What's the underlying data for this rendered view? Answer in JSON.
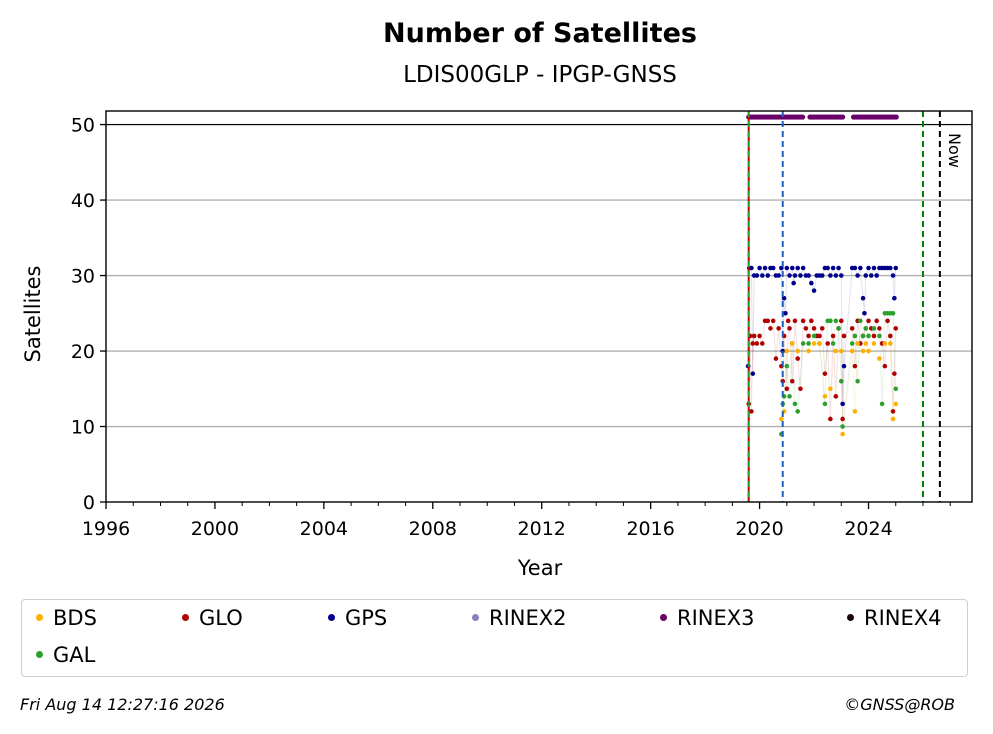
{
  "chart_data": {
    "type": "scatter",
    "title": "Number of Satellites",
    "subtitle": "LDIS00GLP - IPGP-GNSS",
    "xlabel": "Year",
    "ylabel": "Satellites",
    "xlim": [
      1996.0,
      2027.8
    ],
    "ylim": [
      0,
      51.8
    ],
    "x_ticks": [
      1996,
      2000,
      2004,
      2008,
      2012,
      2016,
      2020,
      2024
    ],
    "y_ticks": [
      0,
      10,
      20,
      30,
      40,
      50
    ],
    "grid": "y",
    "reference_line_y": 50,
    "vlines": [
      {
        "x": 2019.6,
        "color": "#cc0000",
        "style": "solid"
      },
      {
        "x": 2019.6,
        "color": "#2ca02c",
        "style": "dashed"
      },
      {
        "x": 2020.85,
        "color": "#1f5fbf",
        "style": "dashed"
      },
      {
        "x": 2026.0,
        "color": "#008000",
        "style": "dashed"
      },
      {
        "x": 2026.62,
        "color": "#000000",
        "style": "dashed",
        "label": "Now"
      }
    ],
    "rinex_bands": [
      {
        "name": "RINEX3",
        "y": 51,
        "color": "#6a006a",
        "ranges": [
          [
            2019.6,
            2021.6
          ],
          [
            2021.85,
            2023.1
          ],
          [
            2023.45,
            2024.55
          ],
          [
            2024.6,
            2025.05
          ]
        ]
      }
    ],
    "series": [
      {
        "name": "GPS",
        "color": "#00008b",
        "points": [
          [
            2019.58,
            18
          ],
          [
            2019.62,
            31
          ],
          [
            2019.7,
            31
          ],
          [
            2019.75,
            17
          ],
          [
            2019.8,
            30
          ],
          [
            2019.9,
            30
          ],
          [
            2020.0,
            31
          ],
          [
            2020.1,
            30
          ],
          [
            2020.2,
            31
          ],
          [
            2020.3,
            30
          ],
          [
            2020.4,
            31
          ],
          [
            2020.5,
            31
          ],
          [
            2020.6,
            30
          ],
          [
            2020.7,
            30
          ],
          [
            2020.8,
            31
          ],
          [
            2020.85,
            20
          ],
          [
            2020.9,
            27
          ],
          [
            2020.95,
            25
          ],
          [
            2021.0,
            31
          ],
          [
            2021.1,
            30
          ],
          [
            2021.2,
            31
          ],
          [
            2021.25,
            29
          ],
          [
            2021.3,
            30
          ],
          [
            2021.4,
            31
          ],
          [
            2021.5,
            30
          ],
          [
            2021.6,
            31
          ],
          [
            2021.7,
            30
          ],
          [
            2021.8,
            30
          ],
          [
            2021.9,
            29
          ],
          [
            2022.0,
            28
          ],
          [
            2022.1,
            30
          ],
          [
            2022.2,
            30
          ],
          [
            2022.3,
            30
          ],
          [
            2022.4,
            31
          ],
          [
            2022.5,
            31
          ],
          [
            2022.6,
            30
          ],
          [
            2022.7,
            31
          ],
          [
            2022.8,
            30
          ],
          [
            2022.9,
            31
          ],
          [
            2023.0,
            30
          ],
          [
            2023.05,
            13
          ],
          [
            2023.1,
            18
          ],
          [
            2023.4,
            31
          ],
          [
            2023.5,
            31
          ],
          [
            2023.6,
            30
          ],
          [
            2023.7,
            31
          ],
          [
            2023.8,
            27
          ],
          [
            2023.85,
            25
          ],
          [
            2023.9,
            30
          ],
          [
            2024.0,
            31
          ],
          [
            2024.1,
            30
          ],
          [
            2024.2,
            31
          ],
          [
            2024.3,
            30
          ],
          [
            2024.4,
            31
          ],
          [
            2024.5,
            31
          ],
          [
            2024.6,
            31
          ],
          [
            2024.7,
            31
          ],
          [
            2024.8,
            31
          ],
          [
            2024.9,
            30
          ],
          [
            2024.95,
            27
          ],
          [
            2025.0,
            31
          ]
        ]
      },
      {
        "name": "GLO",
        "color": "#b00000",
        "points": [
          [
            2019.6,
            13
          ],
          [
            2019.65,
            22
          ],
          [
            2019.7,
            12
          ],
          [
            2019.75,
            21
          ],
          [
            2019.8,
            22
          ],
          [
            2019.9,
            21
          ],
          [
            2020.0,
            22
          ],
          [
            2020.1,
            21
          ],
          [
            2020.2,
            24
          ],
          [
            2020.3,
            24
          ],
          [
            2020.4,
            23
          ],
          [
            2020.5,
            24
          ],
          [
            2020.6,
            19
          ],
          [
            2020.7,
            23
          ],
          [
            2020.8,
            18
          ],
          [
            2020.85,
            16
          ],
          [
            2020.9,
            22
          ],
          [
            2021.0,
            15
          ],
          [
            2021.05,
            24
          ],
          [
            2021.1,
            23
          ],
          [
            2021.2,
            16
          ],
          [
            2021.3,
            24
          ],
          [
            2021.4,
            19
          ],
          [
            2021.5,
            15
          ],
          [
            2021.6,
            24
          ],
          [
            2021.7,
            23
          ],
          [
            2021.8,
            22
          ],
          [
            2021.9,
            24
          ],
          [
            2022.0,
            23
          ],
          [
            2022.1,
            22
          ],
          [
            2022.2,
            22
          ],
          [
            2022.3,
            23
          ],
          [
            2022.4,
            17
          ],
          [
            2022.5,
            21
          ],
          [
            2022.6,
            11
          ],
          [
            2022.7,
            22
          ],
          [
            2022.8,
            14
          ],
          [
            2022.9,
            23
          ],
          [
            2023.0,
            24
          ],
          [
            2023.05,
            11
          ],
          [
            2023.1,
            22
          ],
          [
            2023.4,
            23
          ],
          [
            2023.5,
            18
          ],
          [
            2023.6,
            24
          ],
          [
            2023.7,
            21
          ],
          [
            2023.8,
            22
          ],
          [
            2023.9,
            23
          ],
          [
            2024.0,
            24
          ],
          [
            2024.1,
            23
          ],
          [
            2024.2,
            22
          ],
          [
            2024.3,
            24
          ],
          [
            2024.4,
            23
          ],
          [
            2024.5,
            21
          ],
          [
            2024.6,
            18
          ],
          [
            2024.7,
            24
          ],
          [
            2024.8,
            22
          ],
          [
            2024.9,
            12
          ],
          [
            2024.95,
            17
          ],
          [
            2025.0,
            23
          ]
        ]
      },
      {
        "name": "GAL",
        "color": "#2ca02c",
        "points": [
          [
            2020.8,
            9
          ],
          [
            2020.85,
            13
          ],
          [
            2020.9,
            14
          ],
          [
            2021.0,
            18
          ],
          [
            2021.1,
            14
          ],
          [
            2021.2,
            21
          ],
          [
            2021.3,
            13
          ],
          [
            2021.4,
            12
          ],
          [
            2021.6,
            21
          ],
          [
            2021.8,
            21
          ],
          [
            2022.0,
            22
          ],
          [
            2022.2,
            21
          ],
          [
            2022.4,
            13
          ],
          [
            2022.5,
            24
          ],
          [
            2022.6,
            24
          ],
          [
            2022.7,
            21
          ],
          [
            2022.8,
            24
          ],
          [
            2022.9,
            23
          ],
          [
            2023.0,
            16
          ],
          [
            2023.05,
            10
          ],
          [
            2023.4,
            21
          ],
          [
            2023.5,
            22
          ],
          [
            2023.6,
            16
          ],
          [
            2023.7,
            24
          ],
          [
            2023.8,
            22
          ],
          [
            2023.9,
            23
          ],
          [
            2024.0,
            22
          ],
          [
            2024.2,
            23
          ],
          [
            2024.4,
            22
          ],
          [
            2024.5,
            13
          ],
          [
            2024.6,
            25
          ],
          [
            2024.7,
            25
          ],
          [
            2024.8,
            25
          ],
          [
            2024.9,
            25
          ],
          [
            2025.0,
            15
          ]
        ]
      },
      {
        "name": "BDS",
        "color": "#ffb000",
        "points": [
          [
            2020.8,
            11
          ],
          [
            2020.9,
            12
          ],
          [
            2021.0,
            20
          ],
          [
            2021.2,
            21
          ],
          [
            2021.4,
            20
          ],
          [
            2021.8,
            20
          ],
          [
            2022.0,
            21
          ],
          [
            2022.2,
            21
          ],
          [
            2022.4,
            14
          ],
          [
            2022.6,
            15
          ],
          [
            2022.8,
            20
          ],
          [
            2023.0,
            20
          ],
          [
            2023.05,
            9
          ],
          [
            2023.4,
            20
          ],
          [
            2023.5,
            12
          ],
          [
            2023.6,
            21
          ],
          [
            2023.8,
            20
          ],
          [
            2023.9,
            21
          ],
          [
            2024.0,
            20
          ],
          [
            2024.2,
            21
          ],
          [
            2024.4,
            19
          ],
          [
            2024.6,
            21
          ],
          [
            2024.8,
            21
          ],
          [
            2024.9,
            11
          ],
          [
            2025.0,
            13
          ]
        ]
      }
    ]
  },
  "legend": {
    "items": [
      {
        "label": "BDS",
        "color": "#ffb000"
      },
      {
        "label": "GLO",
        "color": "#b00000"
      },
      {
        "label": "GPS",
        "color": "#00008b"
      },
      {
        "label": "RINEX2",
        "color": "#8c7fc0"
      },
      {
        "label": "RINEX3",
        "color": "#6a006a"
      },
      {
        "label": "RINEX4",
        "color": "#1a0010"
      },
      {
        "label": "GAL",
        "color": "#2ca02c"
      }
    ]
  },
  "footer": {
    "timestamp": "Fri Aug 14 12:27:16 2026",
    "credit": "©GNSS@ROB"
  }
}
